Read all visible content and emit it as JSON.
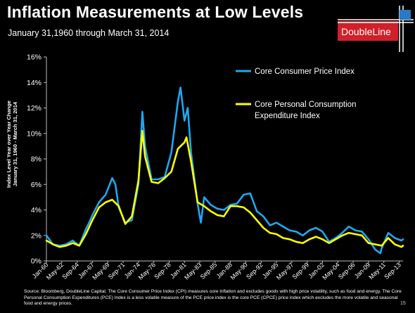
{
  "header": {
    "title": "Inflation Measurements at Low Levels",
    "subtitle": "January 31,1960 through March 31, 2014",
    "logo_text": "DoubleLine"
  },
  "footer": {
    "source": "Source: Bloomberg, DoubleLine Capital. The Core Consumer Price Index (CPI) measures core inflation and excludes goods with high price volatility, such as food and energy. The Core Personal Consumption Expenditures (PCE) Index is a less volatile measure of the PCE price index is the core PCE (CPCE) price index which excludes the more volatile and seasonal food and energy prices.",
    "page_number": "15"
  },
  "colors": {
    "cpi": "#1ea8f0",
    "pce": "#ffff00",
    "logo_red": "#d0202a",
    "logo_blue": "#2a78c8",
    "background": "#000000"
  },
  "chart_data": {
    "type": "line",
    "title": "Inflation Measurements at Low Levels",
    "subtitle": "January 31,1960 through March 31, 2014",
    "ylabel_line1": "Index Level Year over Year Change",
    "ylabel_line2": "January 31, 1960 - March 31, 2014",
    "xlabel": "",
    "ylim": [
      0,
      16
    ],
    "xlim": [
      1960.0,
      2014.25
    ],
    "y_ticks": [
      0,
      2,
      4,
      6,
      8,
      10,
      12,
      14,
      16
    ],
    "y_tick_labels": [
      "0%",
      "2%",
      "4%",
      "6%",
      "8%",
      "10%",
      "12%",
      "14%",
      "16%"
    ],
    "x_tick_labels": [
      "Jan-60",
      "May-62",
      "Sep-64",
      "Jan-67",
      "May-69",
      "Sep-71",
      "Jan-74",
      "May-76",
      "Sep-78",
      "Jan-81",
      "May-83",
      "Sep-85",
      "Jan-88",
      "May-90",
      "Sep-92",
      "Jan-95",
      "May-97",
      "Sep-99",
      "Jan-02",
      "May-04",
      "Sep-06",
      "Jan-09",
      "May-11",
      "Sep-13"
    ],
    "x_tick_positions": [
      1960.0,
      1962.33,
      1964.67,
      1967.0,
      1969.33,
      1971.67,
      1974.0,
      1976.33,
      1978.67,
      1981.0,
      1983.33,
      1985.67,
      1988.0,
      1990.33,
      1992.67,
      1995.0,
      1997.33,
      1999.67,
      2002.0,
      2004.33,
      2006.67,
      2009.0,
      2011.33,
      2013.67
    ],
    "grid": false,
    "legend_position": "top-right",
    "series": [
      {
        "name": "Core Consumer Price Index",
        "color": "#1ea8f0",
        "x": [
          1960.0,
          1961.0,
          1962.0,
          1963.0,
          1964.0,
          1965.0,
          1966.0,
          1966.5,
          1967.0,
          1968.0,
          1969.0,
          1970.0,
          1970.5,
          1971.0,
          1972.0,
          1973.0,
          1974.0,
          1974.6,
          1975.0,
          1976.0,
          1977.0,
          1978.0,
          1979.0,
          1980.0,
          1980.4,
          1981.0,
          1981.5,
          1982.0,
          1983.0,
          1983.5,
          1984.0,
          1985.0,
          1986.0,
          1987.0,
          1988.0,
          1989.0,
          1990.0,
          1991.0,
          1992.0,
          1993.0,
          1994.0,
          1995.0,
          1996.0,
          1997.0,
          1998.0,
          1999.0,
          2000.0,
          2001.0,
          2002.0,
          2003.0,
          2004.0,
          2005.0,
          2006.0,
          2007.0,
          2008.0,
          2009.0,
          2010.0,
          2010.8,
          2011.0,
          2012.0,
          2013.0,
          2014.0,
          2014.25
        ],
        "values": [
          2.0,
          1.3,
          1.2,
          1.3,
          1.6,
          1.2,
          2.5,
          3.0,
          3.6,
          4.6,
          5.2,
          6.5,
          6.0,
          4.2,
          3.0,
          3.2,
          6.0,
          11.7,
          9.0,
          6.4,
          6.4,
          6.6,
          8.5,
          12.5,
          13.6,
          11.0,
          12.0,
          8.5,
          4.5,
          3.0,
          5.0,
          4.4,
          4.1,
          4.0,
          4.4,
          4.5,
          5.2,
          5.3,
          3.9,
          3.5,
          2.8,
          3.0,
          2.7,
          2.4,
          2.3,
          2.0,
          2.4,
          2.6,
          2.3,
          1.5,
          1.8,
          2.2,
          2.7,
          2.4,
          2.3,
          1.7,
          0.9,
          0.6,
          1.0,
          2.2,
          1.8,
          1.6,
          1.7
        ]
      },
      {
        "name": "Core Personal Consumption Expenditure Index",
        "color": "#ffff00",
        "x": [
          1960.0,
          1961.0,
          1962.0,
          1963.0,
          1964.0,
          1965.0,
          1966.0,
          1967.0,
          1968.0,
          1969.0,
          1970.0,
          1971.0,
          1972.0,
          1973.0,
          1974.0,
          1974.6,
          1975.0,
          1976.0,
          1977.0,
          1978.0,
          1979.0,
          1980.0,
          1981.0,
          1981.3,
          1982.0,
          1983.0,
          1984.0,
          1985.0,
          1986.0,
          1987.0,
          1988.0,
          1989.0,
          1990.0,
          1991.0,
          1992.0,
          1993.0,
          1994.0,
          1995.0,
          1996.0,
          1997.0,
          1998.0,
          1999.0,
          2000.0,
          2001.0,
          2002.0,
          2003.0,
          2004.0,
          2005.0,
          2006.0,
          2007.0,
          2008.0,
          2009.0,
          2010.0,
          2011.0,
          2012.0,
          2013.0,
          2014.0,
          2014.25
        ],
        "values": [
          1.6,
          1.3,
          1.1,
          1.2,
          1.4,
          1.2,
          2.1,
          3.2,
          4.2,
          4.6,
          4.8,
          4.3,
          2.9,
          3.5,
          6.3,
          10.2,
          8.2,
          6.2,
          6.1,
          6.5,
          7.0,
          8.8,
          9.3,
          9.7,
          7.8,
          4.6,
          4.3,
          3.9,
          3.6,
          3.5,
          4.3,
          4.3,
          4.2,
          3.8,
          3.2,
          2.6,
          2.2,
          2.1,
          1.8,
          1.7,
          1.5,
          1.4,
          1.7,
          1.9,
          1.7,
          1.4,
          1.7,
          2.0,
          2.2,
          2.1,
          2.0,
          1.4,
          1.3,
          1.2,
          1.8,
          1.3,
          1.1,
          1.2
        ]
      }
    ]
  }
}
